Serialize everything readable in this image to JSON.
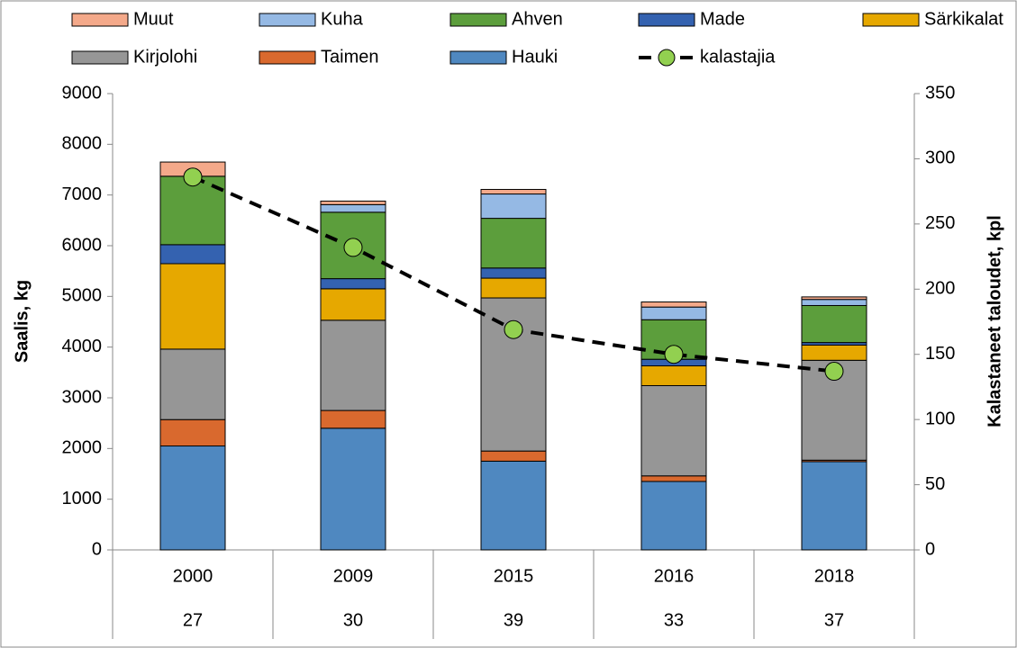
{
  "chart_data": {
    "type": "bar",
    "stacked": true,
    "ylabel": "Saalis, kg",
    "y2label": "Kalastaneet taloudet, kpl",
    "categories": [
      "2000",
      "2009",
      "2015",
      "2016",
      "2018"
    ],
    "sublabels": [
      "27",
      "30",
      "39",
      "33",
      "37"
    ],
    "ylim": [
      0,
      9000
    ],
    "yticks": [
      0,
      1000,
      2000,
      3000,
      4000,
      5000,
      6000,
      7000,
      8000,
      9000
    ],
    "y2lim": [
      0,
      350
    ],
    "y2ticks": [
      0,
      50,
      100,
      150,
      200,
      250,
      300,
      350
    ],
    "series": [
      {
        "name": "Hauki",
        "type": "bar",
        "color": "#4f88c0",
        "values": [
          2050,
          2400,
          1750,
          1350,
          1740
        ]
      },
      {
        "name": "Taimen",
        "type": "bar",
        "color": "#d9692e",
        "values": [
          520,
          350,
          200,
          110,
          30
        ]
      },
      {
        "name": "Kirjolohi",
        "type": "bar",
        "color": "#969696",
        "values": [
          1390,
          1780,
          3020,
          1780,
          1970
        ]
      },
      {
        "name": "Särkikalat",
        "type": "bar",
        "color": "#e6a800",
        "values": [
          1685,
          620,
          390,
          390,
          300
        ]
      },
      {
        "name": "Made",
        "type": "bar",
        "color": "#3462b0",
        "values": [
          375,
          200,
          200,
          130,
          50
        ]
      },
      {
        "name": "Ahven",
        "type": "bar",
        "color": "#5c9e3c",
        "values": [
          1350,
          1310,
          980,
          780,
          730
        ]
      },
      {
        "name": "Kuha",
        "type": "bar",
        "color": "#95b9e4",
        "values": [
          0,
          150,
          480,
          250,
          120
        ]
      },
      {
        "name": "Muut",
        "type": "bar",
        "color": "#f4a98a",
        "values": [
          280,
          70,
          90,
          100,
          50
        ]
      },
      {
        "name": "kalastajia",
        "type": "line",
        "axis": "y2",
        "color": "#000000",
        "marker_color": "#92d050",
        "values": [
          286,
          232,
          169,
          150,
          137
        ]
      }
    ]
  }
}
